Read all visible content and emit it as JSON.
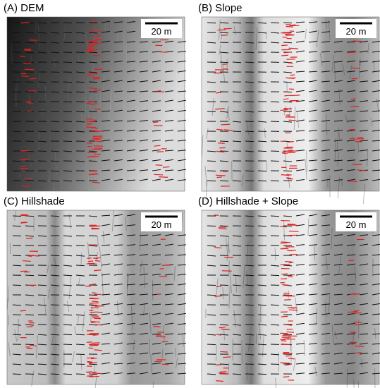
{
  "panels": [
    {
      "label": "(A) DEM",
      "scale": "20 m"
    },
    {
      "label": "(B) Slope",
      "scale": "20 m"
    },
    {
      "label": "(C) Hillshade",
      "scale": "20 m"
    },
    {
      "label": "(D) Hillshade + Slope",
      "scale": "20 m"
    }
  ]
}
